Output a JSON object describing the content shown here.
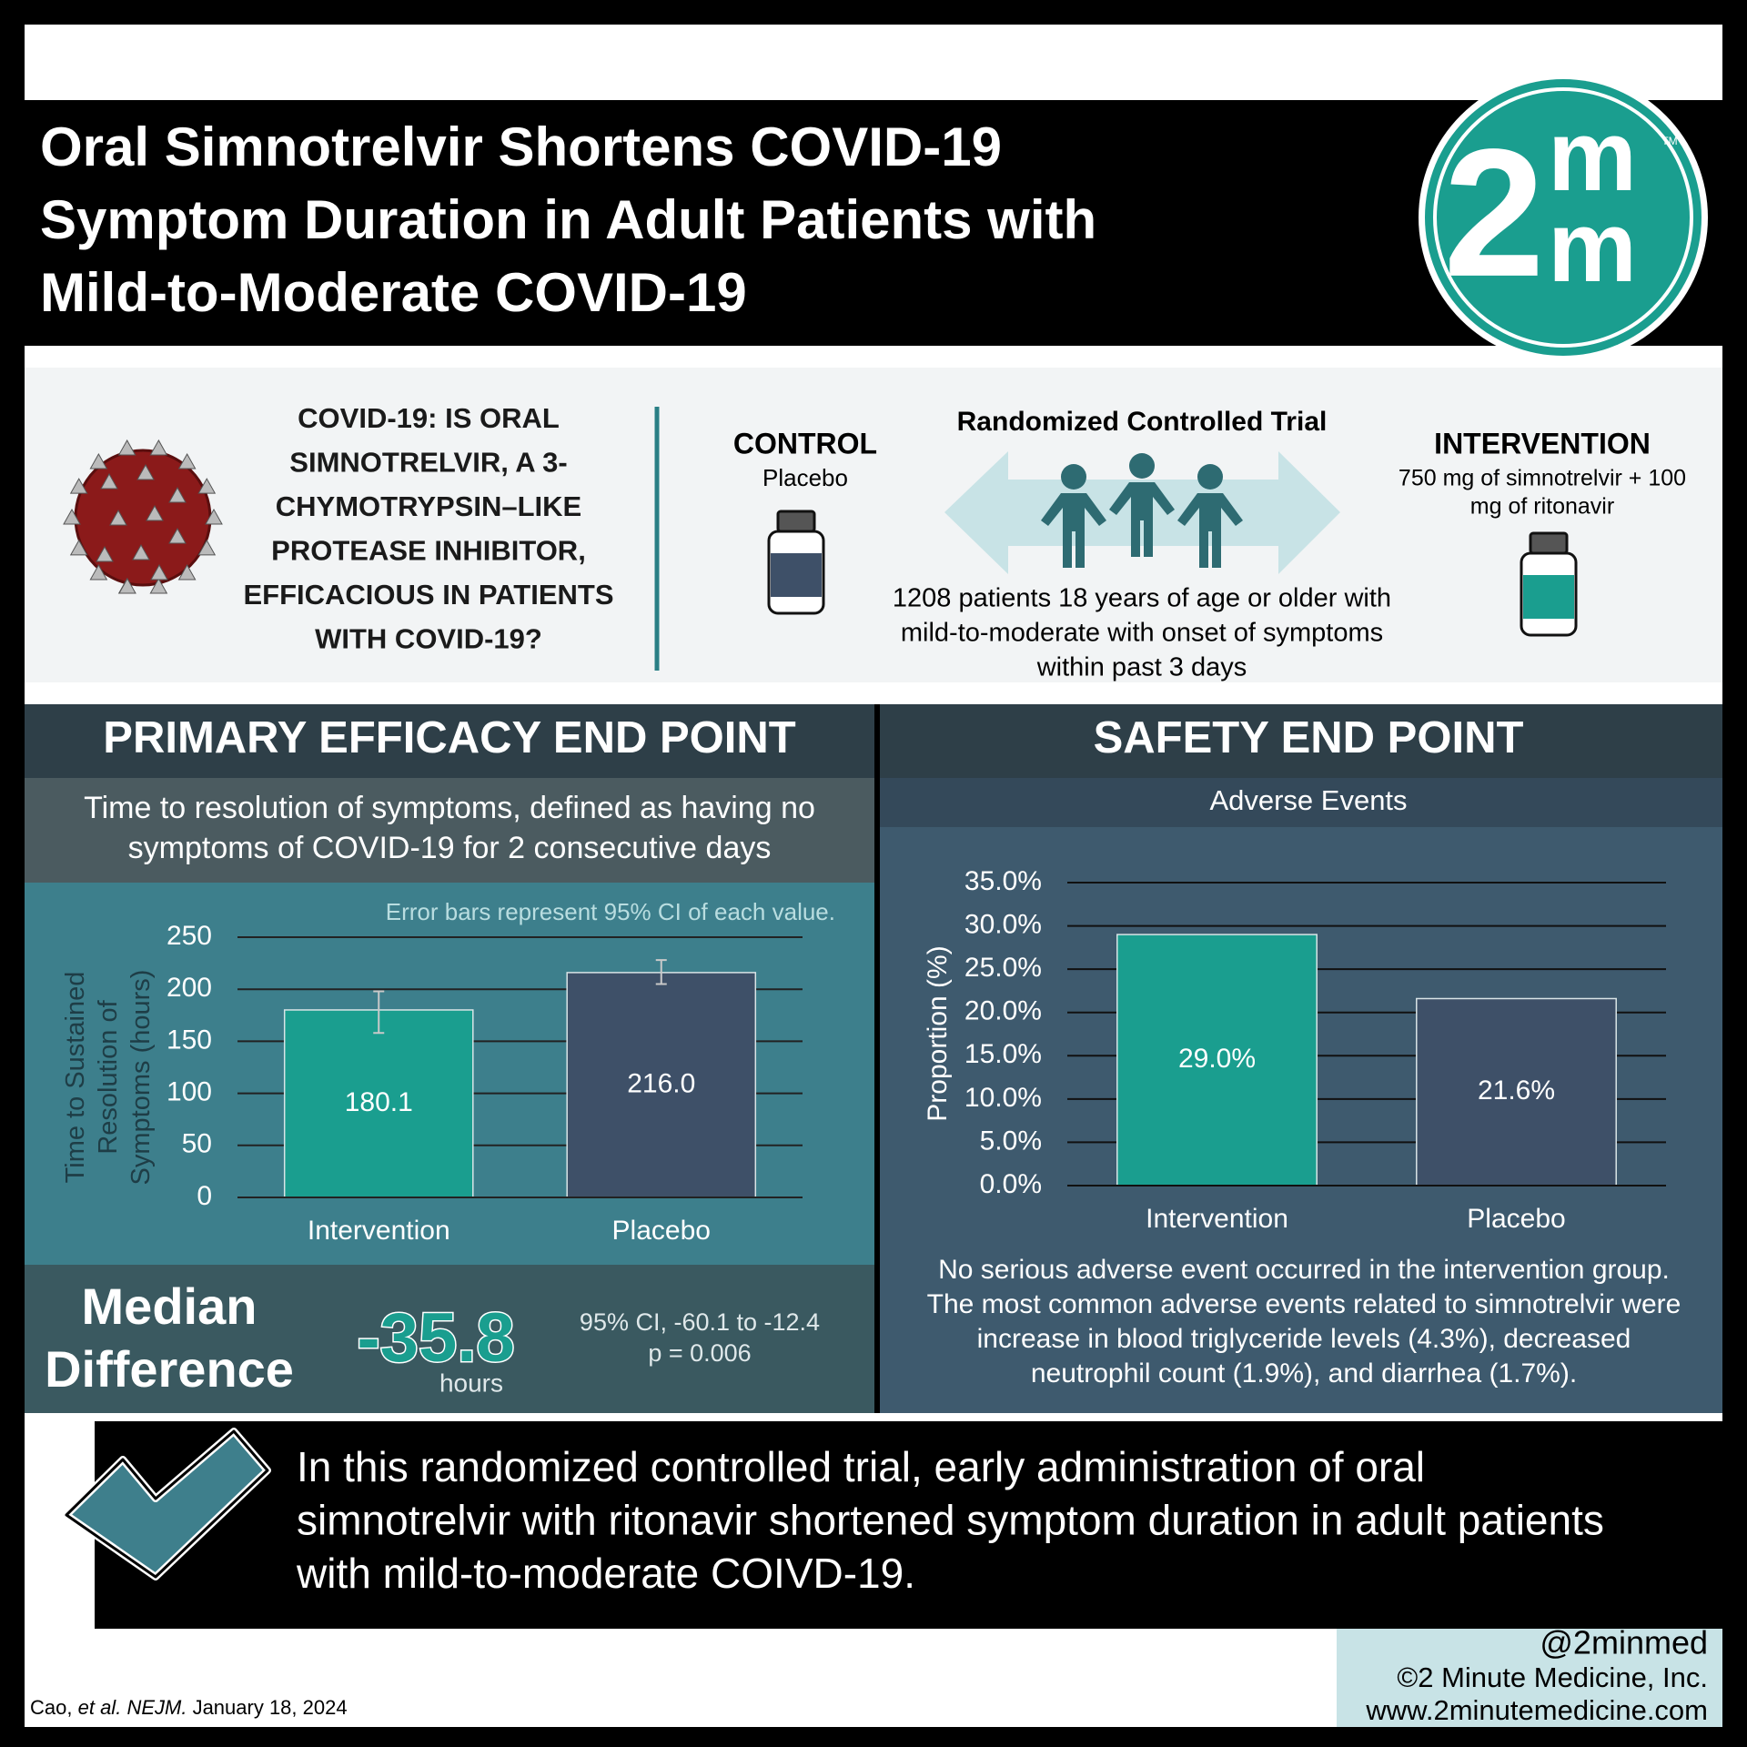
{
  "header": {
    "title_lines": [
      "Oral Simnotrelvir Shortens COVID-19",
      "Symptom Duration in Adult Patients with",
      "Mild-to-Moderate COVID-19"
    ]
  },
  "logo": {
    "digit": "2",
    "top_letter": "m",
    "bottom_letter": "m",
    "trademark": "TM"
  },
  "question": {
    "lines": [
      "COVID-19: IS ORAL",
      "SIMNOTRELVIR, A 3-",
      "CHYMOTRYPSIN–LIKE",
      "PROTEASE INHIBITOR,",
      "EFFICACIOUS IN PATIENTS",
      "WITH COVID-19?"
    ]
  },
  "trial": {
    "design": "Randomized Controlled Trial",
    "control": {
      "label": "CONTROL",
      "drug": "Placebo"
    },
    "intervention": {
      "label": "INTERVENTION",
      "drug_lines": [
        "750 mg of simnotrelvir + 100",
        "mg of ritonavir"
      ]
    },
    "population_lines": [
      "1208 patients 18 years of age or older with",
      "mild-to-moderate with onset of symptoms",
      "within past 3 days"
    ]
  },
  "efficacy": {
    "heading": "PRIMARY EFFICACY END POINT",
    "definition_lines": [
      "Time to resolution of symptoms, defined as having no",
      "symptoms of COVID-19 for 2 consecutive days"
    ],
    "median": {
      "label_lines": [
        "Median",
        "Difference"
      ],
      "value": -35.8,
      "unit": "hours",
      "ci": "95% CI, -60.1 to -12.4",
      "p": "p = 0.006"
    }
  },
  "safety": {
    "heading": "SAFETY END POINT",
    "note_lines": [
      "No serious adverse event occurred in the intervention group.",
      "The most common adverse events related to simnotrelvir were",
      "increase in blood triglyceride levels (4.3%), decreased",
      "neutrophil count (1.9%), and diarrhea (1.7%)."
    ]
  },
  "conclusion": {
    "lines": [
      "In this randomized controlled trial, early administration of oral",
      "simnotrelvir with ritonavir shortened symptom duration in adult patients",
      "with mild-to-moderate COIVD-19."
    ]
  },
  "footer": {
    "citation": {
      "author": "Cao,",
      "etal": "et al.",
      "journal": "NEJM.",
      "date": "January 18, 2024"
    },
    "handle": "@2minmed",
    "copyright": "©2 Minute Medicine, Inc.",
    "website": "www.2minutemedicine.com"
  },
  "chart_data": [
    {
      "type": "bar",
      "annotation": "Error bars represent 95% CI of each value.",
      "ylabel": "Time to Sustained Resolution of Symptoms (hours)",
      "categories": [
        "Intervention",
        "Placebo"
      ],
      "values": [
        180.1,
        216.0
      ],
      "value_labels": [
        "180.1",
        "216.0"
      ],
      "ci_low": [
        158,
        205
      ],
      "ci_high": [
        198,
        228
      ],
      "colors": [
        "#1a9e8f",
        "#3e5068"
      ],
      "ylim": [
        0,
        250
      ],
      "yticks": [
        0,
        50,
        100,
        150,
        200,
        250
      ],
      "grid": true
    },
    {
      "type": "bar",
      "title": "Adverse Events",
      "ylabel": "Proportion (%)",
      "categories": [
        "Intervention",
        "Placebo"
      ],
      "values": [
        29.0,
        21.6
      ],
      "value_labels": [
        "29.0%",
        "21.6%"
      ],
      "colors": [
        "#1a9e8f",
        "#3e5068"
      ],
      "ylim": [
        0,
        35
      ],
      "yticks": [
        {
          "value": 0,
          "label": "0.0%"
        },
        {
          "value": 5,
          "label": "5.0%"
        },
        {
          "value": 10,
          "label": "10.0%"
        },
        {
          "value": 15,
          "label": "15.0%"
        },
        {
          "value": 20,
          "label": "20.0%"
        },
        {
          "value": 25,
          "label": "25.0%"
        },
        {
          "value": 30,
          "label": "30.0%"
        },
        {
          "value": 35,
          "label": "35.0%"
        }
      ],
      "grid": true
    }
  ]
}
